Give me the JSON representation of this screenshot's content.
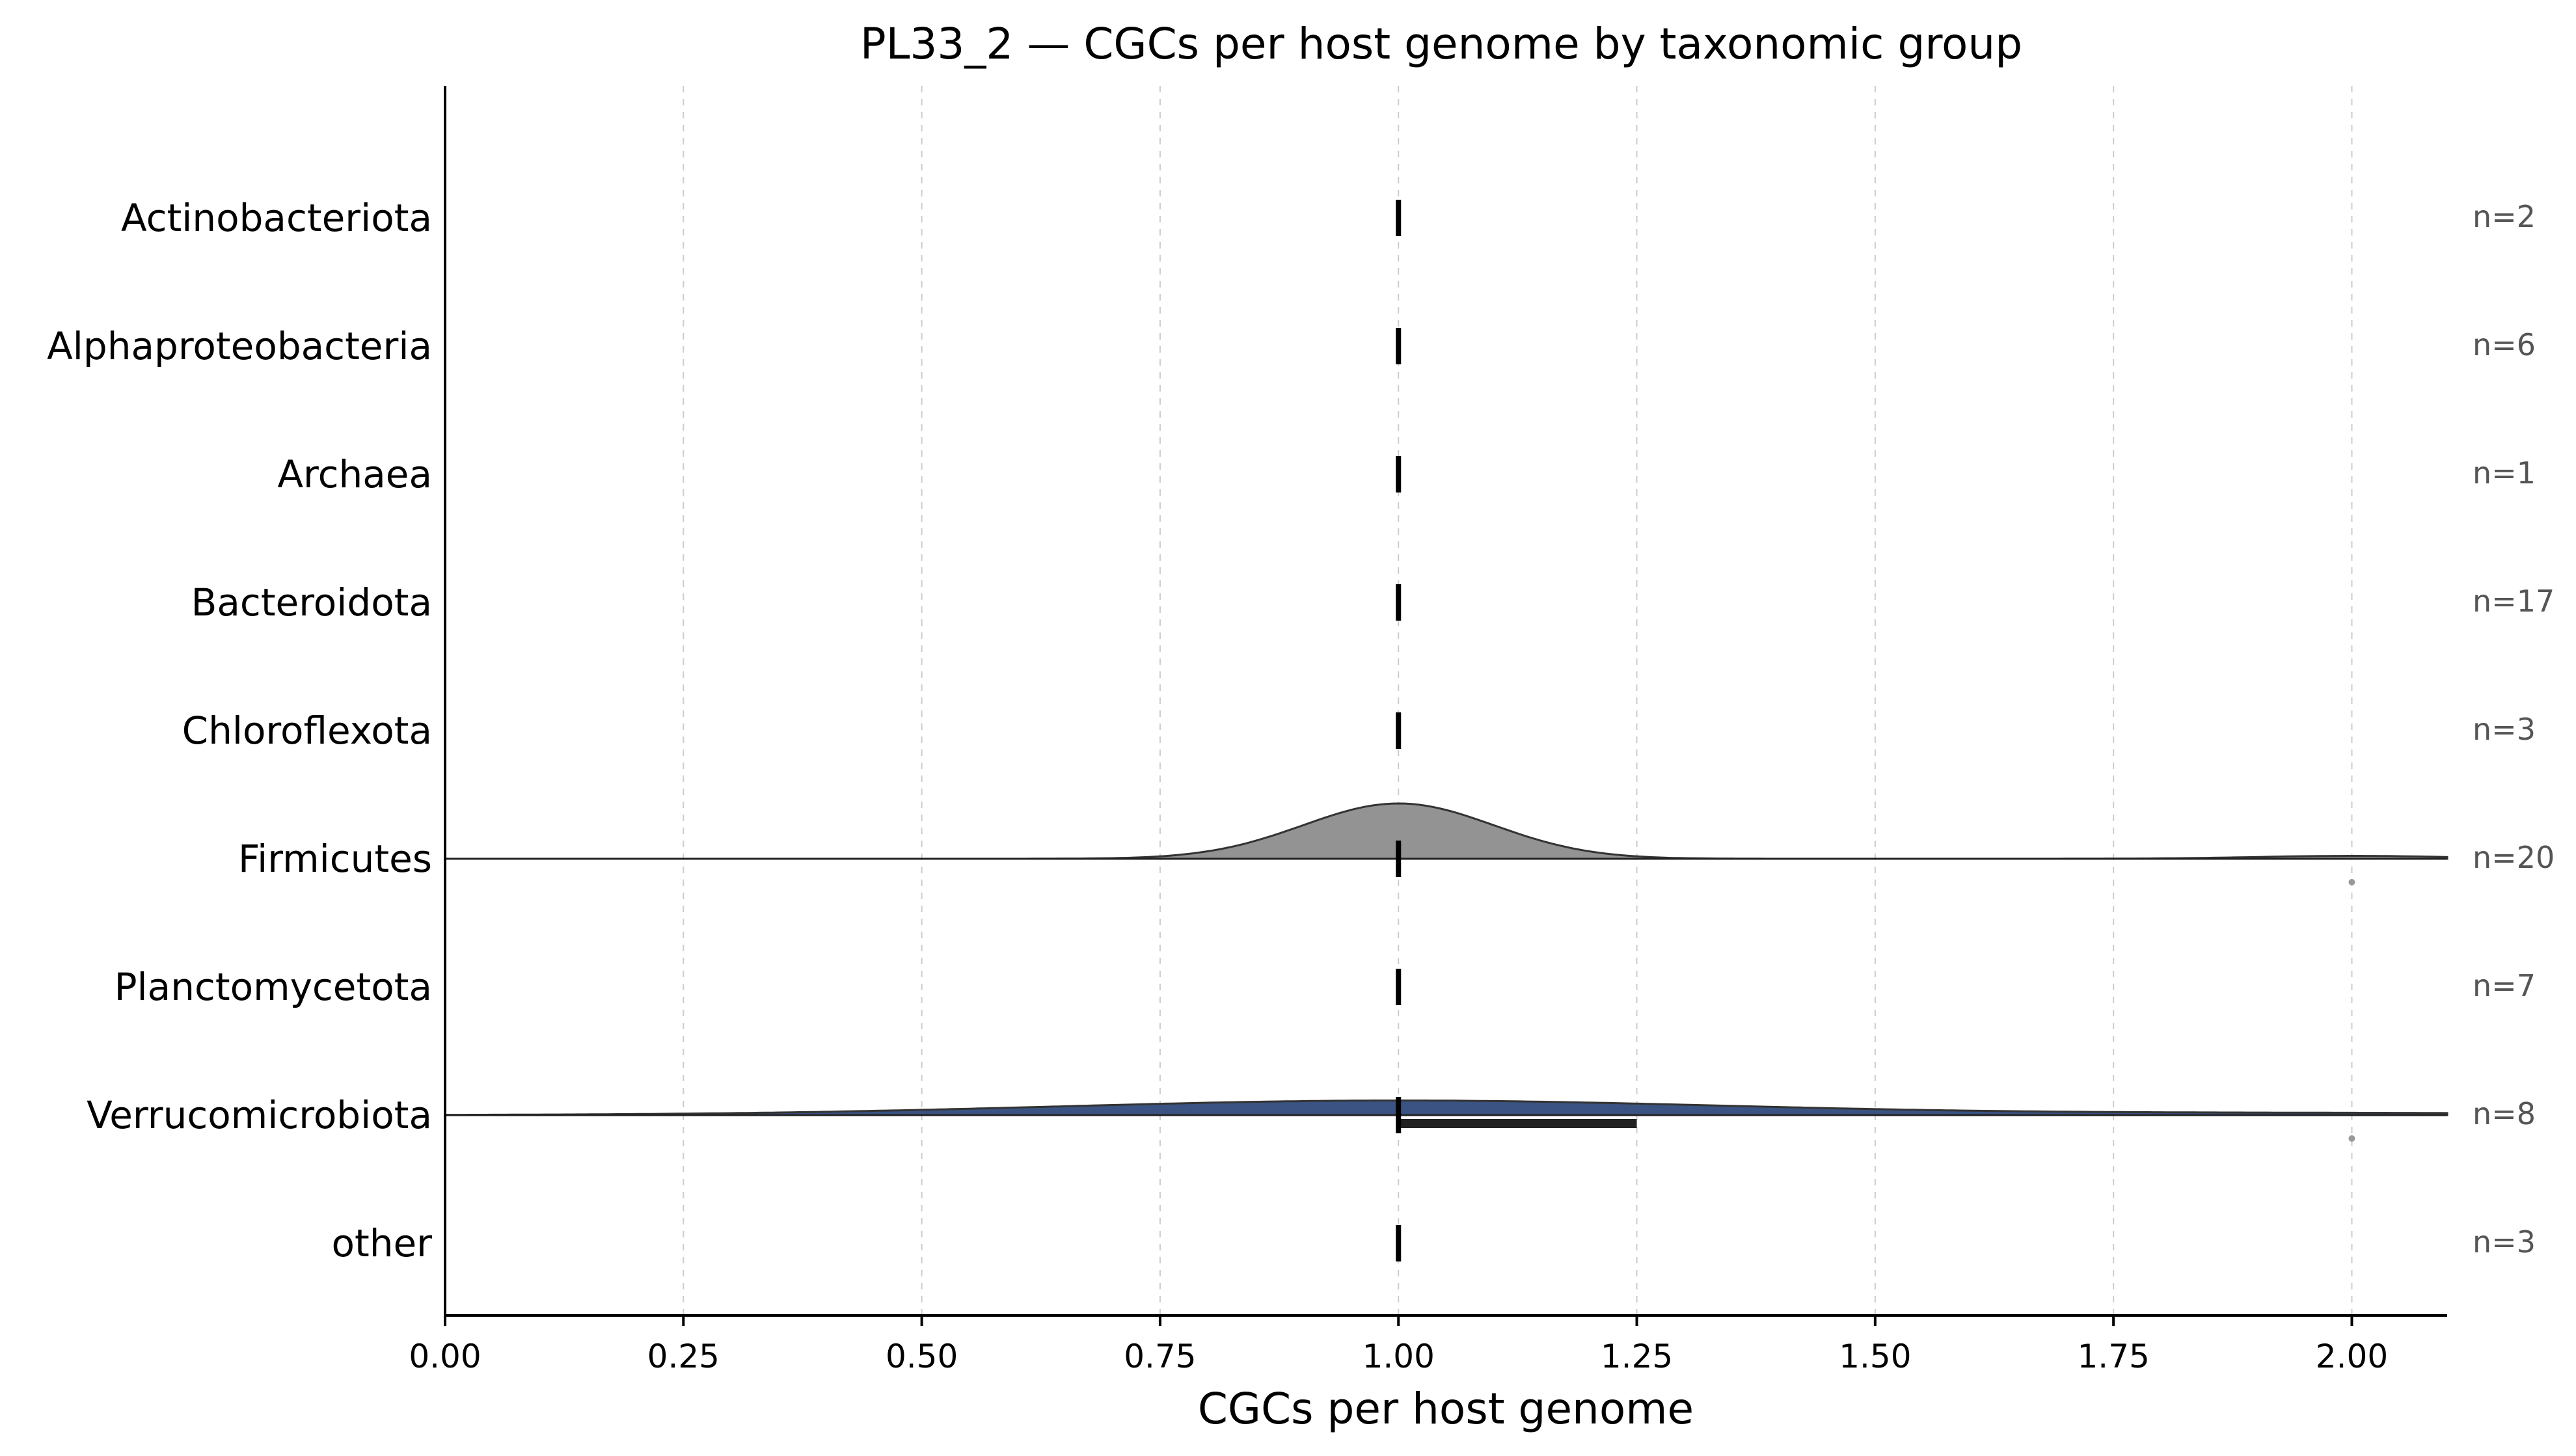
{
  "chart_data": {
    "type": "violin",
    "title": "PL33_2 — CGCs per host genome by taxonomic group",
    "xlabel": "CGCs per host genome",
    "ylabel": "",
    "xlim": [
      0,
      2.1
    ],
    "xticks": [
      0.0,
      0.25,
      0.5,
      0.75,
      1.0,
      1.25,
      1.5,
      1.75,
      2.0
    ],
    "xtick_labels": [
      "0.00",
      "0.25",
      "0.50",
      "0.75",
      "1.00",
      "1.25",
      "1.50",
      "1.75",
      "2.00"
    ],
    "grid": "vertical-dashed",
    "groups": [
      {
        "name": "Actinobacteriota",
        "count_label": "n=2",
        "median": 1.0,
        "color": "#888888",
        "density": null
      },
      {
        "name": "Alphaproteobacteria",
        "count_label": "n=6",
        "median": 1.0,
        "color": "#888888",
        "density": null
      },
      {
        "name": "Archaea",
        "count_label": "n=1",
        "median": 1.0,
        "color": "#888888",
        "density": null
      },
      {
        "name": "Bacteroidota",
        "count_label": "n=17",
        "median": 1.0,
        "color": "#888888",
        "density": null
      },
      {
        "name": "Chloroflexota",
        "count_label": "n=3",
        "median": 1.0,
        "color": "#888888",
        "density": null
      },
      {
        "name": "Firmicutes",
        "count_label": "n=20",
        "median": 1.0,
        "color": "#939393",
        "density": {
          "components": [
            {
              "mu": 1.0,
              "sigma": 0.1,
              "weight": 0.95
            },
            {
              "mu": 2.0,
              "sigma": 0.1,
              "weight": 0.05
            }
          ]
        },
        "iqr": [
          1.0,
          1.0
        ],
        "outliers": [
          2.0
        ]
      },
      {
        "name": "Planctomycetota",
        "count_label": "n=7",
        "median": 1.0,
        "color": "#888888",
        "density": null
      },
      {
        "name": "Verrucomicrobiota",
        "count_label": "n=8",
        "median": 1.0,
        "color": "#3a5382",
        "density": {
          "components": [
            {
              "mu": 1.0,
              "sigma": 0.35,
              "weight": 0.875
            },
            {
              "mu": 2.0,
              "sigma": 0.35,
              "weight": 0.125
            }
          ]
        },
        "iqr": [
          1.0,
          1.25
        ],
        "outliers": [
          2.0
        ]
      },
      {
        "name": "other",
        "count_label": "n=3",
        "median": 1.0,
        "color": "#888888",
        "density": null
      }
    ]
  }
}
